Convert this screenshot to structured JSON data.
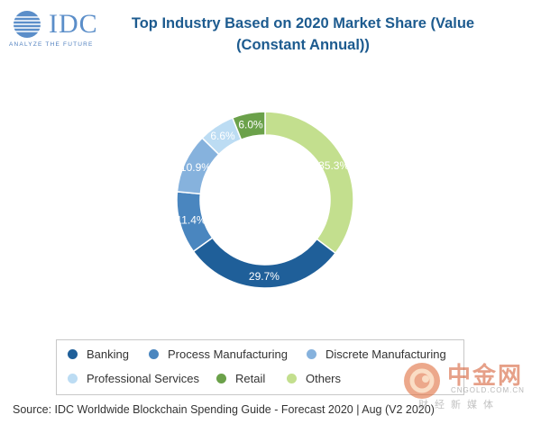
{
  "logo": {
    "text": "IDC",
    "tagline": "ANALYZE THE FUTURE"
  },
  "chart_data": {
    "type": "pie",
    "style": "donut",
    "title": "Top Industry Based on 2020 Market Share (Value (Constant Annual))",
    "title_lines": [
      "Top Industry Based on 2020 Market Share (Value",
      "(Constant Annual))"
    ],
    "categories": [
      "Banking",
      "Process Manufacturing",
      "Discrete Manufacturing",
      "Professional Services",
      "Retail",
      "Others"
    ],
    "values": [
      29.7,
      11.4,
      10.9,
      6.6,
      6.0,
      35.3
    ],
    "labels": [
      "29.7%",
      "11.4%",
      "10.9%",
      "6.6%",
      "6.0%",
      "35.3%"
    ],
    "colors": [
      "#1f5f99",
      "#4a86bf",
      "#86b2dd",
      "#bcdcf3",
      "#6ba14a",
      "#c3df8e"
    ],
    "label_colors": [
      "#ffffff",
      "#ffffff",
      "#ffffff",
      "#ffffff",
      "#ffffff",
      "#ffffff"
    ],
    "legend_position": "bottom"
  },
  "source": "Source: IDC Worldwide Blockchain Spending Guide - Forecast 2020 | Aug (V2 2020)",
  "watermark": {
    "cn": "中金网",
    "url": "CNGOLD.COM.CN",
    "sub": "财经新媒体"
  }
}
